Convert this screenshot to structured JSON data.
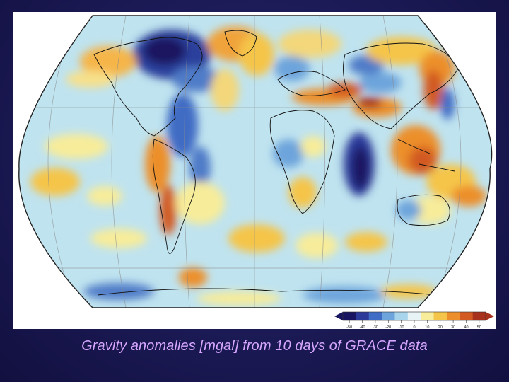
{
  "slide": {
    "caption": "Gravity anomalies [mgal] from 10 days of GRACE data"
  },
  "map": {
    "projection": "robinson",
    "background_color": "#ffffff",
    "base_color": "#bfe3ef",
    "coastline_color": "#111111",
    "graticule_color": "#8a8a8a"
  },
  "colorbar": {
    "ticks": [
      "-50",
      "-40",
      "-30",
      "-20",
      "-10",
      "0",
      "10",
      "20",
      "30",
      "40",
      "50"
    ],
    "colors": [
      "#1a1560",
      "#2c3b9a",
      "#3f6cc4",
      "#6da4dc",
      "#a8d4ec",
      "#e8f3f6",
      "#f7ec9a",
      "#f5c54a",
      "#ec8f2a",
      "#d25a22",
      "#a8311e"
    ]
  }
}
